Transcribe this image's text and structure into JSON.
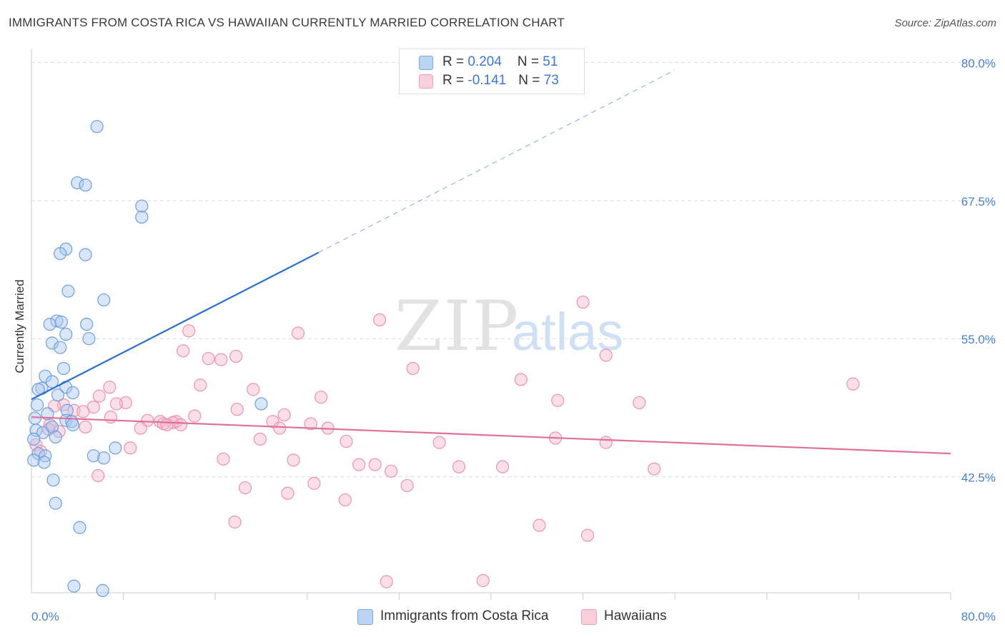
{
  "title": "IMMIGRANTS FROM COSTA RICA VS HAWAIIAN CURRENTLY MARRIED CORRELATION CHART",
  "source": "Source: ZipAtlas.com",
  "legend": {
    "row1": {
      "r_label": "R = ",
      "r_value": "0.204",
      "n_label": "N = ",
      "n_value": "51"
    },
    "row2": {
      "r_label": "R = ",
      "r_value": "-0.141",
      "n_label": "N = ",
      "n_value": "73"
    }
  },
  "bottom_legend": {
    "series1": "Immigrants from Costa Rica",
    "series2": "Hawaiians"
  },
  "watermark": {
    "zip": "ZIP",
    "atlas": "atlas"
  },
  "colors": {
    "blue_fill": "#a9c8f0",
    "blue_stroke": "#6f9ee0",
    "blue_line": "#2a6fce",
    "pink_fill": "#f5b8cc",
    "pink_stroke": "#e993b0",
    "pink_line": "#e0709a",
    "tick_text": "#4a7fd0"
  },
  "chart_data": {
    "type": "scatter",
    "title": "IMMIGRANTS FROM COSTA RICA VS HAWAIIAN CURRENTLY MARRIED CORRELATION CHART",
    "xlabel": "",
    "ylabel": "Currently Married",
    "xlim": [
      0,
      80
    ],
    "ylim": [
      32,
      81
    ],
    "x_tick_labels": [
      {
        "value": 0,
        "label": "0.0%"
      },
      {
        "value": 80,
        "label": "80.0%"
      }
    ],
    "y_tick_labels": [
      {
        "value": 42.5,
        "label": "42.5%"
      },
      {
        "value": 55.0,
        "label": "55.0%"
      },
      {
        "value": 67.5,
        "label": "67.5%"
      },
      {
        "value": 80.0,
        "label": "80.0%"
      }
    ],
    "grid": true,
    "series": [
      {
        "name": "Immigrants from Costa Rica",
        "R": 0.204,
        "N": 51,
        "trend": {
          "x0": 0,
          "y0": 49.5,
          "x1": 25,
          "y1": 62.8,
          "dash_to_x": 56,
          "dash_to_y": 79.3
        },
        "points": [
          [
            5.7,
            74.2
          ],
          [
            4.0,
            69.1
          ],
          [
            4.7,
            68.9
          ],
          [
            9.6,
            67.0
          ],
          [
            9.6,
            66.0
          ],
          [
            3.0,
            63.1
          ],
          [
            2.5,
            62.7
          ],
          [
            4.7,
            62.6
          ],
          [
            3.2,
            59.3
          ],
          [
            6.3,
            58.5
          ],
          [
            2.2,
            56.6
          ],
          [
            2.6,
            56.5
          ],
          [
            1.6,
            56.3
          ],
          [
            4.8,
            56.3
          ],
          [
            3.0,
            55.4
          ],
          [
            5.0,
            55.0
          ],
          [
            1.8,
            54.6
          ],
          [
            2.5,
            54.2
          ],
          [
            2.8,
            52.3
          ],
          [
            1.2,
            51.6
          ],
          [
            1.8,
            51.1
          ],
          [
            3.0,
            50.6
          ],
          [
            0.9,
            50.5
          ],
          [
            0.6,
            50.4
          ],
          [
            3.6,
            50.1
          ],
          [
            2.3,
            49.9
          ],
          [
            0.5,
            49.0
          ],
          [
            20.0,
            49.1
          ],
          [
            3.1,
            48.5
          ],
          [
            1.4,
            48.2
          ],
          [
            0.3,
            47.8
          ],
          [
            3.0,
            47.6
          ],
          [
            3.5,
            47.5
          ],
          [
            3.6,
            47.2
          ],
          [
            1.8,
            47.0
          ],
          [
            0.4,
            46.7
          ],
          [
            1.0,
            46.5
          ],
          [
            2.1,
            46.1
          ],
          [
            0.2,
            45.9
          ],
          [
            7.3,
            45.1
          ],
          [
            0.6,
            44.6
          ],
          [
            1.2,
            44.4
          ],
          [
            5.4,
            44.4
          ],
          [
            6.3,
            44.2
          ],
          [
            0.2,
            44.0
          ],
          [
            1.1,
            43.8
          ],
          [
            1.9,
            42.2
          ],
          [
            2.1,
            40.1
          ],
          [
            4.2,
            37.9
          ],
          [
            3.7,
            32.6
          ],
          [
            6.2,
            32.2
          ]
        ]
      },
      {
        "name": "Hawaiians",
        "R": -0.141,
        "N": 73,
        "trend": {
          "x0": 0,
          "y0": 47.9,
          "x1": 80,
          "y1": 44.6
        },
        "points": [
          [
            48.0,
            58.3
          ],
          [
            30.3,
            56.7
          ],
          [
            13.7,
            55.7
          ],
          [
            23.2,
            55.5
          ],
          [
            13.2,
            53.9
          ],
          [
            17.8,
            53.4
          ],
          [
            15.4,
            53.2
          ],
          [
            16.5,
            53.1
          ],
          [
            50.0,
            53.5
          ],
          [
            33.2,
            52.3
          ],
          [
            42.6,
            51.3
          ],
          [
            71.5,
            50.9
          ],
          [
            14.7,
            50.8
          ],
          [
            6.8,
            50.6
          ],
          [
            19.3,
            50.4
          ],
          [
            5.9,
            49.8
          ],
          [
            25.2,
            49.7
          ],
          [
            45.8,
            49.4
          ],
          [
            52.9,
            49.2
          ],
          [
            8.2,
            49.2
          ],
          [
            7.4,
            49.1
          ],
          [
            2.8,
            49.0
          ],
          [
            5.4,
            48.8
          ],
          [
            17.9,
            48.6
          ],
          [
            3.7,
            48.5
          ],
          [
            4.5,
            48.4
          ],
          [
            22.0,
            48.1
          ],
          [
            14.2,
            48.0
          ],
          [
            6.9,
            47.9
          ],
          [
            10.1,
            47.6
          ],
          [
            11.2,
            47.5
          ],
          [
            12.6,
            47.5
          ],
          [
            21.0,
            47.5
          ],
          [
            12.3,
            47.4
          ],
          [
            11.5,
            47.3
          ],
          [
            24.3,
            47.3
          ],
          [
            1.6,
            47.2
          ],
          [
            11.8,
            47.2
          ],
          [
            13.0,
            47.2
          ],
          [
            4.7,
            47.0
          ],
          [
            9.5,
            46.9
          ],
          [
            21.6,
            46.9
          ],
          [
            25.8,
            46.9
          ],
          [
            2.4,
            46.6
          ],
          [
            45.6,
            46.0
          ],
          [
            19.9,
            45.9
          ],
          [
            27.4,
            45.7
          ],
          [
            35.5,
            45.6
          ],
          [
            50.0,
            45.6
          ],
          [
            8.6,
            45.1
          ],
          [
            16.7,
            44.1
          ],
          [
            22.8,
            44.0
          ],
          [
            28.5,
            43.6
          ],
          [
            29.9,
            43.6
          ],
          [
            37.2,
            43.4
          ],
          [
            41.0,
            43.4
          ],
          [
            54.2,
            43.2
          ],
          [
            31.3,
            43.0
          ],
          [
            5.8,
            42.6
          ],
          [
            24.6,
            41.9
          ],
          [
            32.7,
            41.7
          ],
          [
            18.6,
            41.5
          ],
          [
            22.3,
            41.0
          ],
          [
            27.3,
            40.4
          ],
          [
            17.7,
            38.4
          ],
          [
            44.2,
            38.1
          ],
          [
            48.4,
            37.2
          ],
          [
            30.9,
            33.0
          ],
          [
            39.3,
            33.1
          ],
          [
            0.4,
            45.4
          ],
          [
            0.8,
            44.8
          ],
          [
            1.5,
            46.8
          ],
          [
            2.0,
            48.9
          ]
        ]
      }
    ]
  }
}
